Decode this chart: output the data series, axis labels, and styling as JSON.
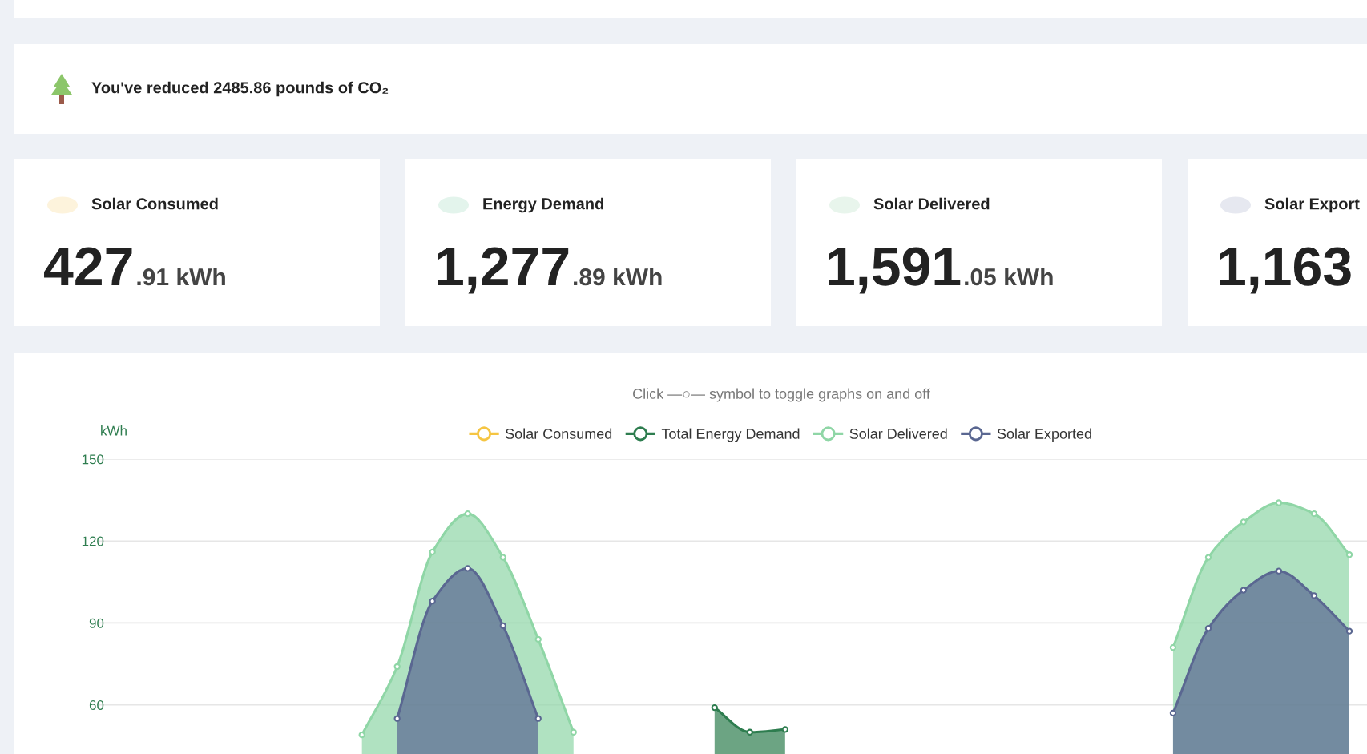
{
  "chart_data": [
    {
      "type": "other",
      "title": "You've reduced 2485.86 pounds of CO₂",
      "annotations": [
        "Solar Consumed",
        "427.91 kWh",
        "Energy Demand",
        "1,277.89 kWh",
        "Solar Delivered",
        "1,591.05 kWh",
        "Solar Export",
        "1,163"
      ]
    },
    {
      "type": "area",
      "subtitle": "Click —○— symbol to toggle graphs on and off",
      "ylabel": "kWh",
      "categories": [
        null,
        null,
        null,
        null,
        null,
        null,
        null,
        null,
        null,
        null,
        null,
        null,
        null,
        null,
        null,
        null,
        null,
        null,
        null,
        null,
        null,
        null,
        null,
        null,
        null,
        null,
        null,
        null,
        null,
        null,
        null,
        null,
        null,
        null,
        null,
        null
      ],
      "ylim": [
        42,
        150
      ],
      "yticks": [
        60,
        90,
        120,
        150
      ],
      "grid": "y",
      "legend": "top",
      "marker": "circle",
      "tick_labels": "y",
      "series": [
        {
          "name": "Solar Consumed",
          "color": "#f5c542",
          "values": [
            null,
            null,
            null,
            null,
            null,
            null,
            null,
            null,
            null,
            null,
            null,
            null,
            null,
            null,
            null,
            null,
            null,
            null,
            null,
            null,
            null,
            null,
            null,
            null,
            null,
            null,
            null,
            null,
            null,
            null,
            null,
            null,
            null,
            null,
            null,
            null
          ]
        },
        {
          "name": "Total Energy Demand",
          "color": "#2e7d4f",
          "values": [
            null,
            null,
            null,
            null,
            null,
            null,
            null,
            null,
            null,
            null,
            null,
            null,
            null,
            null,
            null,
            null,
            null,
            59,
            50,
            51,
            null,
            null,
            null,
            null,
            null,
            null,
            null,
            null,
            null,
            null,
            null,
            null,
            null,
            null,
            null,
            null
          ]
        },
        {
          "name": "Solar Delivered",
          "color": "#8fd6a6",
          "values": [
            null,
            null,
            null,
            null,
            null,
            null,
            null,
            49,
            74,
            116,
            130,
            114,
            84,
            50,
            null,
            null,
            null,
            null,
            null,
            null,
            null,
            null,
            null,
            null,
            null,
            null,
            null,
            null,
            null,
            null,
            81,
            114,
            127,
            134,
            130,
            115
          ]
        },
        {
          "name": "Solar Exported",
          "color": "#5a6791",
          "values": [
            null,
            null,
            null,
            null,
            null,
            null,
            null,
            null,
            55,
            98,
            110,
            89,
            55,
            null,
            null,
            null,
            null,
            null,
            null,
            null,
            null,
            null,
            null,
            null,
            null,
            null,
            null,
            null,
            null,
            null,
            57,
            88,
            102,
            109,
            100,
            87
          ]
        }
      ]
    }
  ]
}
